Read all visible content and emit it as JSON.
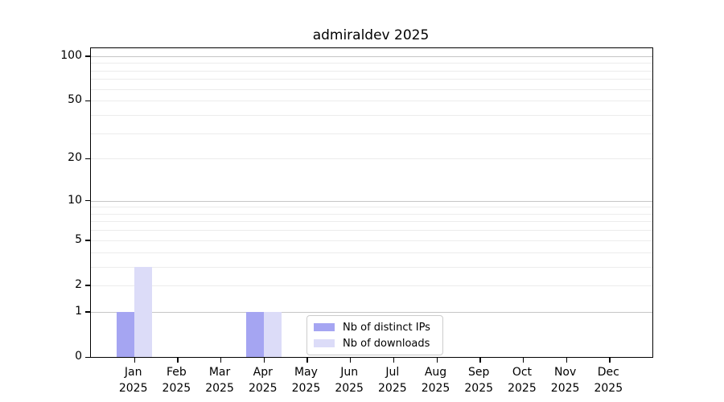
{
  "chart_data": {
    "type": "bar",
    "title": "admiraldev 2025",
    "categories": [
      "Jan",
      "Feb",
      "Mar",
      "Apr",
      "May",
      "Jun",
      "Jul",
      "Aug",
      "Sep",
      "Oct",
      "Nov",
      "Dec"
    ],
    "year_label": "2025",
    "series": [
      {
        "name": "Nb of distinct IPs",
        "color": "#a5a5f2",
        "values": [
          1,
          0,
          0,
          1,
          0,
          0,
          0,
          0,
          0,
          0,
          0,
          0
        ]
      },
      {
        "name": "Nb of downloads",
        "color": "#dcdcf8",
        "values": [
          3,
          0,
          0,
          1,
          0,
          0,
          0,
          0,
          0,
          0,
          0,
          0
        ]
      }
    ],
    "yscale": "log1p",
    "ylim": [
      0,
      113
    ],
    "yticks": [
      0,
      1,
      2,
      5,
      10,
      20,
      50,
      100
    ],
    "major_grid_ticks": [
      1,
      10,
      100
    ],
    "light_grid_ticks": [
      2,
      5,
      20,
      50
    ],
    "minor_grid_ticks": [
      3,
      4,
      6,
      7,
      8,
      9,
      30,
      40,
      60,
      70,
      80,
      90
    ],
    "grid": true,
    "legend_position": "lower center-left inside",
    "colors": {
      "axis": "#000000",
      "major_grid": "#c6c6c6",
      "minor_grid": "#ececec",
      "legend_border": "#cccccc"
    }
  }
}
